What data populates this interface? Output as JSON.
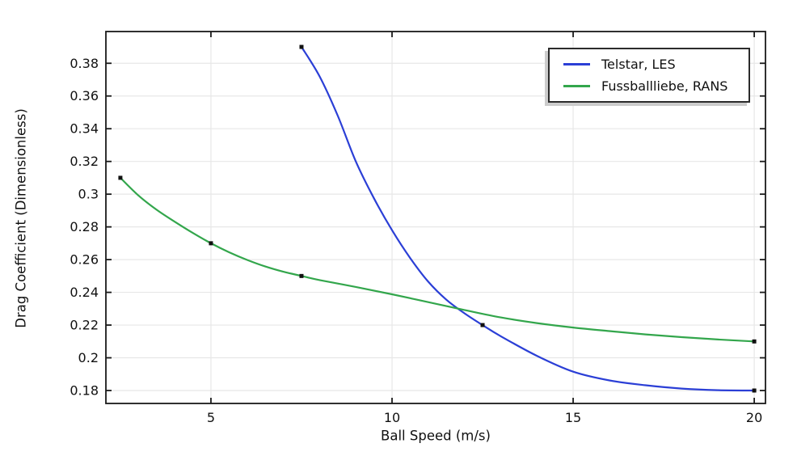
{
  "chart_data": {
    "type": "line",
    "title": "",
    "xlabel": "Ball Speed (m/s)",
    "ylabel": "Drag Coefficient (Dimensionless)",
    "xlim": [
      2.1,
      20.31
    ],
    "ylim": [
      0.1721,
      0.3994
    ],
    "grid": true,
    "legend_position": "top-right",
    "colors": {
      "axis": "#1a1a1a",
      "grid": "#e7e7e7",
      "text": "#111111",
      "marker": "#111111",
      "legend_border": "#2b2b2b",
      "legend_shadow": "#cccccc",
      "background": "#ffffff"
    },
    "xticks": [
      {
        "v": 5,
        "label": "5"
      },
      {
        "v": 10,
        "label": "10"
      },
      {
        "v": 15,
        "label": "15"
      },
      {
        "v": 20,
        "label": "20"
      }
    ],
    "yticks": [
      {
        "v": 0.18,
        "label": "0.18"
      },
      {
        "v": 0.2,
        "label": "0.2"
      },
      {
        "v": 0.22,
        "label": "0.22"
      },
      {
        "v": 0.24,
        "label": "0.24"
      },
      {
        "v": 0.26,
        "label": "0.26"
      },
      {
        "v": 0.28,
        "label": "0.28"
      },
      {
        "v": 0.3,
        "label": "0.3"
      },
      {
        "v": 0.32,
        "label": "0.32"
      },
      {
        "v": 0.34,
        "label": "0.34"
      },
      {
        "v": 0.36,
        "label": "0.36"
      },
      {
        "v": 0.38,
        "label": "0.38"
      }
    ],
    "series": [
      {
        "name": "Telstar, LES",
        "color": "#2b3fd6",
        "marker": "square",
        "points": [
          [
            7.5,
            0.39
          ],
          [
            12.5,
            0.22
          ],
          [
            20,
            0.18
          ]
        ],
        "curve": [
          [
            7.5,
            0.39
          ],
          [
            8,
            0.372
          ],
          [
            8.5,
            0.348
          ],
          [
            9,
            0.32
          ],
          [
            9.5,
            0.2975
          ],
          [
            10,
            0.278
          ],
          [
            10.5,
            0.261
          ],
          [
            11,
            0.2465
          ],
          [
            11.5,
            0.2355
          ],
          [
            12,
            0.2272
          ],
          [
            12.5,
            0.22
          ],
          [
            13,
            0.2132
          ],
          [
            14,
            0.2012
          ],
          [
            15,
            0.1915
          ],
          [
            16,
            0.1862
          ],
          [
            17,
            0.1832
          ],
          [
            18,
            0.1812
          ],
          [
            19,
            0.1802
          ],
          [
            20,
            0.18
          ]
        ]
      },
      {
        "name": "Fussballliebe, RANS",
        "color": "#33a64c",
        "marker": "square",
        "points": [
          [
            2.5,
            0.31
          ],
          [
            5,
            0.27
          ],
          [
            7.5,
            0.25
          ],
          [
            20,
            0.21
          ]
        ],
        "curve": [
          [
            2.5,
            0.31
          ],
          [
            3,
            0.2992
          ],
          [
            3.5,
            0.2905
          ],
          [
            4,
            0.2832
          ],
          [
            4.5,
            0.2763
          ],
          [
            5,
            0.27
          ],
          [
            5.5,
            0.2645
          ],
          [
            6,
            0.2598
          ],
          [
            6.5,
            0.2558
          ],
          [
            7,
            0.2526
          ],
          [
            7.5,
            0.25
          ],
          [
            8,
            0.2475
          ],
          [
            9,
            0.2433
          ],
          [
            10,
            0.2388
          ],
          [
            11,
            0.234
          ],
          [
            12,
            0.2292
          ],
          [
            13,
            0.2247
          ],
          [
            14,
            0.2212
          ],
          [
            15,
            0.2185
          ],
          [
            16,
            0.2163
          ],
          [
            17,
            0.2143
          ],
          [
            18,
            0.2126
          ],
          [
            19,
            0.2112
          ],
          [
            20,
            0.21
          ]
        ]
      }
    ]
  }
}
